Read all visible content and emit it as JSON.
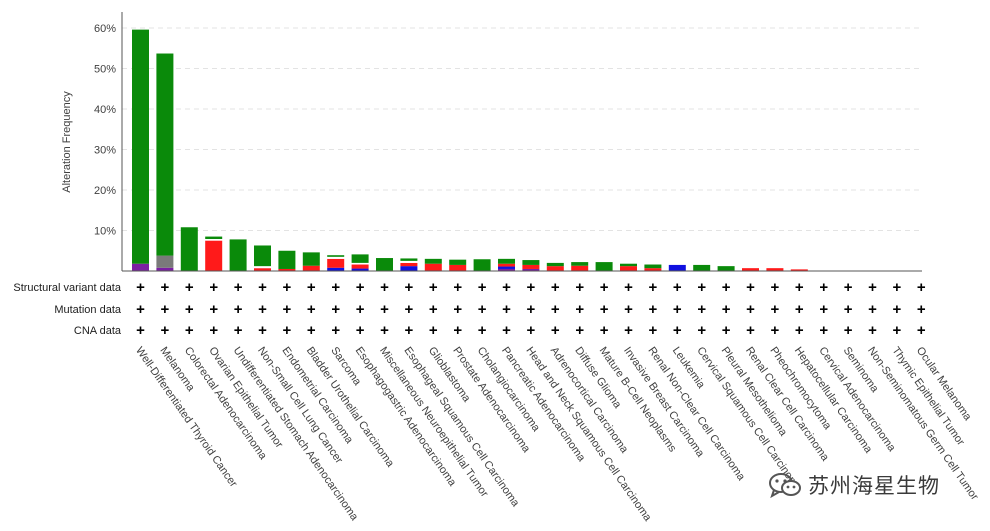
{
  "chart_data": {
    "type": "bar",
    "stacked": true,
    "ylabel": "Alteration Frequency",
    "y_ticks": [
      "10%",
      "20%",
      "30%",
      "40%",
      "50%",
      "60%"
    ],
    "y_tick_values": [
      10,
      20,
      30,
      40,
      50,
      60
    ],
    "ylim": [
      0,
      64
    ],
    "grid": true,
    "categories": [
      "Well-Differentiated Thyroid Cancer",
      "Melanoma",
      "Colorectal Adenocarcinoma",
      "Ovarian Epithelial Tumor",
      "Undifferentiated Stomach Adenocarcinoma",
      "Non-Small Cell Lung Cancer",
      "Endometrial Carcinoma",
      "Bladder Urothelial Carcinoma",
      "Sarcoma",
      "Esophagogastric Adenocarcinoma",
      "Miscellaneous Neuroepithelial Tumor",
      "Esophageal Squamous Cell Carcinoma",
      "Glioblastoma",
      "Prostate Adenocarcinoma",
      "Cholangiocarcinoma",
      "Pancreatic Adenocarcinoma",
      "Head and Neck Squamous Cell Carcinoma",
      "Adrenocortical Carcinoma",
      "Diffuse Glioma",
      "Mature B-Cell Neoplasms",
      "Invasive Breast Carcinoma",
      "Renal Non-Clear Cell Carcinoma",
      "Leukemia",
      "Cervical Squamous Cell Carcinoma",
      "Pleural Mesothelioma",
      "Renal Clear Cell Carcinoma",
      "Pheochromocytoma",
      "Hepatocellular Carcinoma",
      "Cervical Adenocarcinoma",
      "Seminoma",
      "Non-Seminomatous Germ Cell Tumor",
      "Thymic Epithelial Tumor",
      "Ocular Melanoma"
    ],
    "series": [
      {
        "key": "purple",
        "color": "#7b1fa2",
        "values": [
          1.8,
          0.8,
          0,
          0,
          0,
          0,
          0,
          0,
          0,
          0,
          0,
          0,
          0,
          0,
          0,
          0.5,
          0.5,
          0,
          0,
          0,
          0,
          0,
          0,
          0,
          0,
          0,
          0,
          0,
          0,
          0,
          0,
          0,
          0
        ]
      },
      {
        "key": "gray",
        "color": "#7a7a7a",
        "values": [
          0,
          3.0,
          0,
          0,
          0,
          0,
          0,
          0,
          0,
          0,
          0,
          0,
          0,
          0,
          0,
          0,
          0,
          0,
          0,
          0,
          0,
          0,
          0,
          0,
          0,
          0,
          0,
          0,
          0,
          0,
          0,
          0,
          0
        ]
      },
      {
        "key": "blue",
        "color": "#1010e0",
        "values": [
          0,
          0,
          0,
          0,
          0,
          0,
          0,
          0,
          0.8,
          0.6,
          0,
          1.2,
          0,
          0,
          0,
          0.6,
          0,
          0,
          0,
          0,
          0,
          0,
          1.5,
          0,
          0,
          0,
          0,
          0,
          0,
          0,
          0,
          0,
          0
        ]
      },
      {
        "key": "red",
        "color": "#ff1a1a",
        "values": [
          0,
          0,
          0,
          7.5,
          0,
          0.7,
          0.5,
          1.3,
          2.2,
          1.0,
          0,
          0.8,
          1.8,
          1.5,
          0,
          0.7,
          1.0,
          1.2,
          1.3,
          0,
          1.2,
          0.7,
          0,
          0,
          0,
          0.7,
          0.7,
          0.4,
          0,
          0,
          0,
          0,
          0
        ]
      },
      {
        "key": "white",
        "color": "#ffffff",
        "values": [
          0,
          0,
          0,
          0.4,
          0,
          0.5,
          0,
          0,
          0.5,
          0.4,
          0,
          0.5,
          0,
          0,
          0,
          0,
          0,
          0,
          0,
          0,
          0,
          0,
          0,
          0,
          0,
          0,
          0,
          0,
          0,
          0,
          0,
          0,
          0
        ]
      },
      {
        "key": "green",
        "color": "#0a8a0a",
        "values": [
          57.8,
          49.9,
          10.8,
          0.6,
          7.8,
          5.1,
          4.5,
          3.3,
          0.4,
          2.1,
          3.2,
          0.6,
          1.2,
          1.3,
          2.9,
          1.2,
          1.2,
          0.8,
          0.9,
          2.2,
          0.6,
          0.9,
          0,
          1.5,
          1.2,
          0,
          0,
          0,
          0,
          0,
          0,
          0,
          0
        ]
      }
    ],
    "row_labels": [
      "Structural variant data",
      "Mutation data",
      "CNA data"
    ],
    "row_marker": "+"
  },
  "watermark": {
    "text": "苏州海星生物",
    "icon": "wechat-icon"
  }
}
